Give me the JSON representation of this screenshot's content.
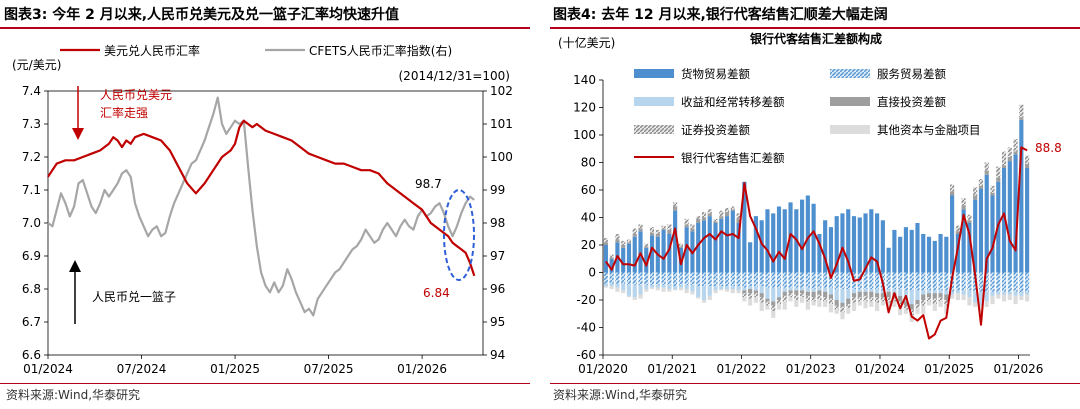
{
  "panel_left": {
    "title": "图表3:  今年 2 月以来,人民币兑美元及兑一篮子汇率均快速升值",
    "source": "资料来源:Wind,华泰研究"
  },
  "panel_right": {
    "title": "图表4:  去年 12 月以来,银行代客结售汇顺差大幅走阔",
    "source": "资料来源:Wind,华泰研究"
  },
  "chart_data": [
    {
      "type": "line",
      "title": "",
      "ylabel_left": "(元/美元)",
      "ylabel_right": "(2014/12/31=100)",
      "ylim_left": [
        6.6,
        7.4
      ],
      "ylim_right": [
        94,
        102
      ],
      "yticks_left": [
        "6.6",
        "6.7",
        "6.8",
        "6.9",
        "7.0",
        "7.1",
        "7.2",
        "7.3",
        "7.4"
      ],
      "yticks_right": [
        "94",
        "95",
        "96",
        "97",
        "98",
        "99",
        "100",
        "101",
        "102"
      ],
      "xticks": [
        "01/2024",
        "07/2024",
        "01/2025",
        "07/2025",
        "01/2026"
      ],
      "legend": [
        "美元兑人民币汇率",
        "CFETS人民币汇率指数(右)"
      ],
      "annotations": {
        "usd_strong": "人民币兑美元\n汇率走强",
        "basket_label": "人民币兑一篮子",
        "cfets_last": "98.7",
        "usd_last": "6.84"
      },
      "series": [
        {
          "name": "美元兑人民币汇率",
          "color": "#c00000",
          "axis": "left",
          "t": [
            0,
            4,
            8,
            12,
            16,
            20,
            24,
            28,
            30,
            32,
            34,
            36,
            38,
            40,
            44,
            48,
            52,
            56,
            60,
            64,
            68,
            72,
            76,
            80,
            84,
            86,
            88,
            90,
            92,
            94,
            96,
            98,
            100,
            104,
            108,
            112,
            116,
            120,
            124,
            128,
            132,
            136,
            140,
            144,
            148,
            152,
            156,
            160,
            164,
            168,
            172,
            176,
            180,
            184,
            186,
            188,
            190,
            192,
            194,
            196
          ],
          "values": [
            7.14,
            7.18,
            7.19,
            7.19,
            7.2,
            7.21,
            7.22,
            7.24,
            7.26,
            7.25,
            7.23,
            7.25,
            7.24,
            7.26,
            7.27,
            7.26,
            7.25,
            7.22,
            7.17,
            7.12,
            7.09,
            7.12,
            7.16,
            7.2,
            7.22,
            7.24,
            7.29,
            7.31,
            7.3,
            7.29,
            7.3,
            7.29,
            7.28,
            7.27,
            7.26,
            7.25,
            7.23,
            7.21,
            7.2,
            7.19,
            7.18,
            7.18,
            7.17,
            7.16,
            7.16,
            7.15,
            7.12,
            7.1,
            7.08,
            7.06,
            7.04,
            7.0,
            6.98,
            6.96,
            6.94,
            6.93,
            6.92,
            6.91,
            6.88,
            6.84
          ]
        },
        {
          "name": "CFETS人民币汇率指数(右)",
          "color": "#a6a6a6",
          "axis": "right",
          "t": [
            0,
            2,
            4,
            6,
            8,
            10,
            12,
            14,
            16,
            18,
            20,
            22,
            24,
            26,
            28,
            30,
            32,
            34,
            36,
            38,
            40,
            42,
            44,
            46,
            48,
            50,
            52,
            54,
            56,
            58,
            60,
            62,
            64,
            66,
            68,
            70,
            72,
            74,
            76,
            78,
            80,
            82,
            84,
            86,
            88,
            90,
            92,
            94,
            96,
            98,
            100,
            102,
            104,
            106,
            108,
            110,
            112,
            114,
            116,
            118,
            120,
            122,
            124,
            126,
            128,
            130,
            132,
            134,
            136,
            138,
            140,
            142,
            144,
            146,
            148,
            150,
            152,
            154,
            156,
            158,
            160,
            162,
            164,
            166,
            168,
            170,
            172,
            174,
            176,
            178,
            180,
            182,
            184,
            186,
            188,
            190,
            192,
            194,
            196
          ],
          "values": [
            98.0,
            97.9,
            98.4,
            98.9,
            98.6,
            98.2,
            98.5,
            99.2,
            99.3,
            98.9,
            98.5,
            98.3,
            98.6,
            99.0,
            98.8,
            99.0,
            99.2,
            99.5,
            99.6,
            99.4,
            98.6,
            98.2,
            97.9,
            97.6,
            97.8,
            97.9,
            97.6,
            97.7,
            98.2,
            98.6,
            98.9,
            99.2,
            99.5,
            99.8,
            99.9,
            100.2,
            100.5,
            100.9,
            101.3,
            101.8,
            101.0,
            100.7,
            100.9,
            101.1,
            101.0,
            101.1,
            99.7,
            98.4,
            97.3,
            96.5,
            96.1,
            95.9,
            96.2,
            95.9,
            96.1,
            96.6,
            96.3,
            95.9,
            95.6,
            95.3,
            95.4,
            95.2,
            95.7,
            95.9,
            96.1,
            96.3,
            96.5,
            96.6,
            96.8,
            97.0,
            97.2,
            97.3,
            97.5,
            97.8,
            97.6,
            97.4,
            97.5,
            97.8,
            98.0,
            97.8,
            97.6,
            97.9,
            98.1,
            97.9,
            97.8,
            98.2,
            98.4,
            98.2,
            98.3,
            98.5,
            98.6,
            98.3,
            97.9,
            97.6,
            97.9,
            98.3,
            98.6,
            98.8,
            98.7
          ]
        }
      ]
    },
    {
      "type": "bar",
      "title": "银行代客结售汇差额构成",
      "ylabel": "(十亿美元)",
      "ylim": [
        -60,
        140
      ],
      "yticks": [
        "-60",
        "-40",
        "-20",
        "0",
        "20",
        "40",
        "60",
        "80",
        "100",
        "120",
        "140"
      ],
      "xticks": [
        "01/2020",
        "01/2021",
        "01/2022",
        "01/2023",
        "01/2024",
        "01/2025",
        "01/2026"
      ],
      "n_months": 74,
      "legend": [
        "货物贸易差额",
        "服务贸易差额",
        "收益和经常转移差额",
        "直接投资差额",
        "证券投资差额",
        "其他资本与金融项目",
        "银行代客结售汇差额"
      ],
      "annotations": {
        "net_last": "88.8"
      },
      "colors": {
        "goods": "#4e8fcf",
        "services": "#7fb2dd",
        "income": "#b8d5ee",
        "fdi": "#9e9e9e",
        "portfolio": "#bdbdbd",
        "other": "#dcdcdc",
        "net": "#c00000"
      },
      "series": [
        {
          "name": "货物贸易差额",
          "key": "goods",
          "values": [
            20,
            10,
            22,
            18,
            21,
            26,
            30,
            18,
            27,
            26,
            31,
            28,
            45,
            18,
            33,
            30,
            36,
            38,
            41,
            36,
            39,
            41,
            45,
            36,
            66,
            22,
            41,
            38,
            46,
            43,
            48,
            46,
            51,
            46,
            53,
            56,
            50,
            28,
            38,
            33,
            41,
            43,
            46,
            41,
            40,
            43,
            46,
            43,
            38,
            18,
            31,
            26,
            33,
            31,
            36,
            28,
            26,
            23,
            28,
            26,
            56,
            28,
            46,
            36,
            53,
            61,
            71,
            56,
            66,
            76,
            81,
            86,
            111,
            76
          ]
        },
        {
          "name": "服务贸易差额",
          "key": "services",
          "values": [
            -8,
            -8,
            -8,
            -8,
            -9,
            -9,
            -9,
            -9,
            -9,
            -9,
            -9,
            -9,
            -10,
            -9,
            -9,
            -9,
            -10,
            -10,
            -10,
            -10,
            -10,
            -10,
            -10,
            -10,
            -11,
            -10,
            -10,
            -10,
            -11,
            -11,
            -11,
            -11,
            -11,
            -11,
            -11,
            -11,
            -12,
            -11,
            -11,
            -11,
            -12,
            -12,
            -12,
            -12,
            -12,
            -12,
            -12,
            -12,
            -13,
            -12,
            -12,
            -12,
            -13,
            -13,
            -13,
            -13,
            -13,
            -13,
            -13,
            -13,
            -14,
            -13,
            -13,
            -13,
            -14,
            -14,
            -14,
            -14,
            -14,
            -14,
            -14,
            -14,
            -15,
            -14
          ]
        },
        {
          "name": "收益和经常转移差额",
          "key": "income",
          "values": [
            -2,
            -2,
            -3,
            -5,
            -8,
            -9,
            -7,
            -3,
            -2,
            -2,
            -2,
            -3,
            -2,
            -2,
            -3,
            -5,
            -8,
            -10,
            -7,
            -3,
            -2,
            -2,
            -2,
            -3,
            -2,
            -2,
            -3,
            -5,
            -8,
            -10,
            -7,
            -3,
            -2,
            -2,
            -2,
            -3,
            -2,
            -2,
            -3,
            -5,
            -8,
            -10,
            -7,
            -3,
            -2,
            -2,
            -2,
            -3,
            -2,
            -2,
            -3,
            -5,
            -8,
            -10,
            -7,
            -3,
            -2,
            -2,
            -2,
            -3,
            -2,
            -2,
            -3,
            -5,
            -8,
            -10,
            -7,
            -3,
            -2,
            -2,
            -2,
            -3,
            -2,
            -2
          ]
        },
        {
          "name": "直接投资差额",
          "key": "fdi",
          "values": [
            2,
            1,
            2,
            2,
            1,
            2,
            2,
            1,
            2,
            2,
            1,
            3,
            3,
            1,
            2,
            2,
            3,
            2,
            2,
            1,
            2,
            3,
            1,
            3,
            -2,
            -3,
            -2,
            -3,
            -2,
            -3,
            -2,
            -3,
            -2,
            -3,
            -2,
            -3,
            -4,
            -3,
            -4,
            -3,
            -4,
            -3,
            -4,
            -3,
            -4,
            -3,
            -4,
            -3,
            -3,
            -4,
            -3,
            -4,
            -3,
            -4,
            -3,
            -4,
            -3,
            -4,
            -3,
            -4,
            3,
            2,
            3,
            2,
            3,
            2,
            3,
            2,
            3,
            2,
            3,
            2,
            2,
            3
          ]
        },
        {
          "name": "证券投资差额",
          "key": "portfolio",
          "values": [
            3,
            2,
            4,
            3,
            2,
            4,
            3,
            2,
            4,
            3,
            2,
            4,
            3,
            2,
            4,
            3,
            2,
            4,
            3,
            2,
            4,
            3,
            2,
            4,
            -3,
            -4,
            -3,
            -4,
            -3,
            -4,
            -3,
            -4,
            -3,
            -4,
            -3,
            -4,
            -3,
            -4,
            -3,
            -4,
            -3,
            -4,
            -3,
            -4,
            -3,
            -4,
            -3,
            -4,
            -3,
            -4,
            -3,
            -4,
            -3,
            -4,
            -3,
            -4,
            -3,
            -4,
            -3,
            -4,
            5,
            4,
            5,
            4,
            6,
            5,
            6,
            5,
            8,
            10,
            7,
            9,
            9,
            6
          ]
        },
        {
          "name": "其他资本与金融项目",
          "key": "other",
          "values": [
            -1,
            -2,
            -3,
            -2,
            -1,
            -2,
            -3,
            -2,
            -1,
            -2,
            -3,
            -2,
            -1,
            -2,
            -3,
            -2,
            -1,
            -2,
            -3,
            -2,
            -1,
            -2,
            -3,
            -2,
            -3,
            -5,
            -4,
            -6,
            -3,
            -5,
            -4,
            -6,
            -3,
            -5,
            -4,
            -6,
            -3,
            -5,
            -4,
            -6,
            -3,
            -5,
            -4,
            -6,
            -3,
            -5,
            -4,
            -6,
            -3,
            -5,
            -4,
            -6,
            -3,
            -5,
            -4,
            -6,
            -3,
            -5,
            -4,
            -6,
            -3,
            -5,
            -4,
            -6,
            -3,
            -5,
            -4,
            -6,
            -3,
            -5,
            -4,
            -6,
            -3,
            -5
          ]
        },
        {
          "name": "银行代客结售汇差额",
          "key": "net",
          "values": [
            8,
            2,
            12,
            6,
            6,
            5,
            14,
            5,
            18,
            13,
            10,
            17,
            32,
            6,
            20,
            14,
            20,
            25,
            28,
            24,
            30,
            27,
            28,
            25,
            65,
            41,
            32,
            21,
            16,
            8,
            15,
            10,
            28,
            24,
            17,
            25,
            30,
            21,
            10,
            -4,
            6,
            18,
            8,
            -6,
            -5,
            3,
            11,
            8,
            -8,
            -29,
            -15,
            -26,
            -17,
            -32,
            -35,
            -31,
            -48,
            -45,
            -35,
            -33,
            -4,
            18,
            42,
            28,
            -2,
            -38,
            10,
            18,
            35,
            43,
            23,
            16,
            91,
            88.8
          ]
        }
      ]
    }
  ]
}
